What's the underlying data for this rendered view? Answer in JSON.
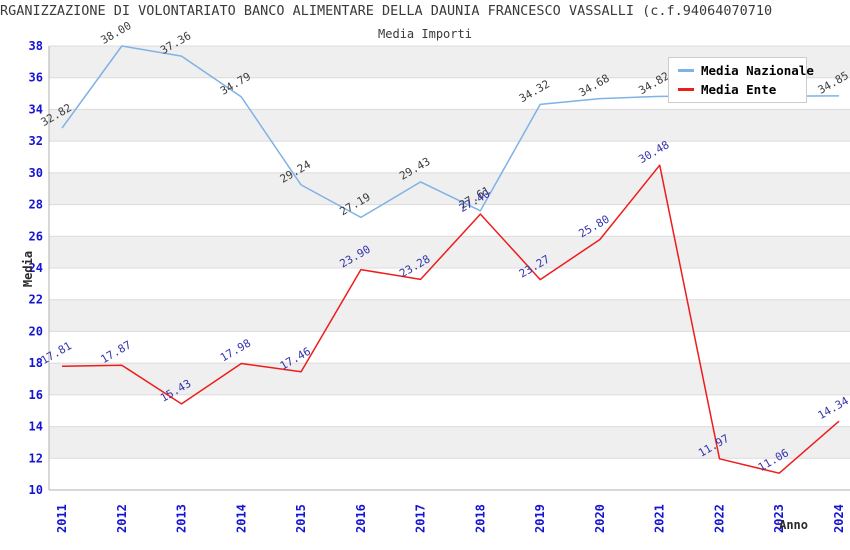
{
  "header": {
    "title": "RGANIZZAZIONE DI VOLONTARIATO BANCO ALIMENTARE DELLA DAUNIA FRANCESCO VASSALLI (c.f.94064070710",
    "subtitle": "Media Importi"
  },
  "chart_data": {
    "type": "line",
    "x": [
      "2011",
      "2012",
      "2013",
      "2014",
      "2015",
      "2016",
      "2017",
      "2018",
      "2019",
      "2020",
      "2021",
      "2022",
      "2023",
      "2024"
    ],
    "series": [
      {
        "name": "Media Nazionale",
        "color": "#7fb2e5",
        "label_color": "#3d3d3d",
        "values": [
          32.82,
          38.0,
          37.36,
          34.79,
          29.24,
          27.19,
          29.43,
          27.61,
          34.32,
          34.68,
          34.82,
          34.83,
          34.84,
          34.85
        ],
        "labels": [
          "32.82",
          "38.00",
          "37.36",
          "34.79",
          "29.24",
          "27.19",
          "29.43",
          "27.61",
          "34.32",
          "34.68",
          "34.82",
          "",
          "",
          "34.85"
        ]
      },
      {
        "name": "Media Ente",
        "color": "#ee1c1c",
        "label_color": "#3434ac",
        "values": [
          17.81,
          17.87,
          15.43,
          17.98,
          17.46,
          23.9,
          23.28,
          27.4,
          23.27,
          25.8,
          30.48,
          11.97,
          11.06,
          14.34
        ],
        "labels": [
          "17.81",
          "17.87",
          "15.43",
          "17.98",
          "17.46",
          "23.90",
          "23.28",
          "27.40",
          "23.27",
          "25.80",
          "30.48",
          "11.97",
          "11.06",
          "14.34"
        ]
      }
    ],
    "xlabel": "Anno",
    "ylabel": "Media",
    "ylim": [
      10,
      38
    ],
    "ytick_step": 2,
    "grid": true,
    "alternating_bands": true,
    "legend_position": "top-right"
  },
  "style_colors": {
    "tick_text": "#1414d2",
    "band_fill": "#efefef",
    "gridline": "#dcdcdc",
    "axis_line": "#b0b0b0",
    "title_text": "#3a3a3a"
  }
}
